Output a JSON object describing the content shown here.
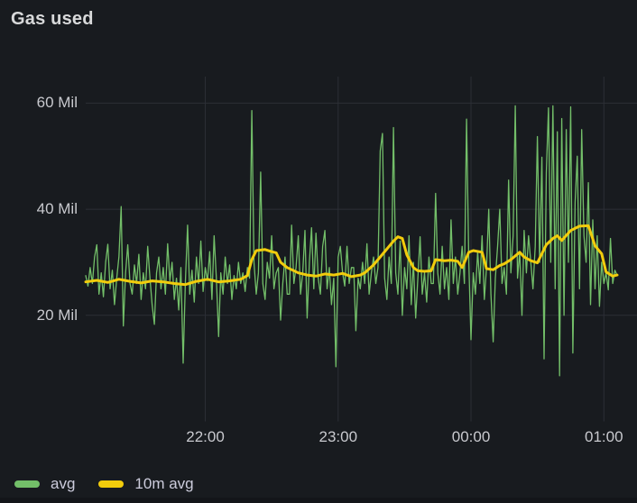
{
  "panel": {
    "title": "Gas used"
  },
  "colors": {
    "background": "#181b1f",
    "text_primary": "#d8d9da",
    "text_axis": "#c8c9ce",
    "grid": "#2c2f36",
    "green": "#73bf69",
    "yellow": "#f2cc0c",
    "bottom_strip": "#131519"
  },
  "legend": {
    "items": [
      {
        "label": "avg",
        "color": "#73bf69"
      },
      {
        "label": "10m avg",
        "color": "#f2cc0c"
      }
    ]
  },
  "chart_data": {
    "type": "line",
    "title": "Gas used",
    "xlabel": "",
    "ylabel": "Gas used",
    "unit": "Mil",
    "grid": true,
    "legend_position": "bottom",
    "ylim": [
      0,
      65
    ],
    "x_range": [
      "21:06",
      "01:06"
    ],
    "x_total_minutes": 240,
    "x_step_minutes": 1,
    "y_ticks": [
      {
        "value": 20,
        "label": "20 Mil"
      },
      {
        "value": 40,
        "label": "40 Mil"
      },
      {
        "value": 60,
        "label": "60 Mil"
      }
    ],
    "x_ticks": [
      {
        "minutes_from_start": 54,
        "label": "22:00"
      },
      {
        "minutes_from_start": 114,
        "label": "23:00"
      },
      {
        "minutes_from_start": 174,
        "label": "00:00"
      },
      {
        "minutes_from_start": 234,
        "label": "01:00"
      }
    ],
    "series": [
      {
        "name": "avg",
        "color": "#73bf69",
        "stroke_width": 1.3,
        "x_mode": "minute_index",
        "values": [
          27.5,
          25.5,
          29,
          26,
          31,
          33.3,
          24,
          28,
          23.5,
          30,
          33.4,
          25,
          28.5,
          22,
          27,
          31,
          40.5,
          18,
          28,
          33.3,
          26,
          24,
          29.5,
          26,
          31.5,
          23,
          28,
          25,
          33,
          27,
          22,
          18.3,
          28,
          31,
          25,
          29,
          24,
          33.5,
          26.5,
          30,
          23,
          27,
          21,
          29,
          11,
          26,
          37,
          24,
          28.5,
          22.5,
          31,
          26,
          34,
          24.5,
          29,
          26.5,
          32,
          23,
          35,
          27,
          16,
          28,
          24,
          31,
          26,
          29.5,
          23,
          27.5,
          25,
          30,
          26,
          28,
          24.5,
          29,
          27,
          58.6,
          30,
          24,
          28,
          47,
          26,
          23,
          30,
          27,
          35,
          25,
          28,
          29,
          19.1,
          26,
          31,
          24,
          24,
          37,
          26,
          29,
          35,
          24,
          28,
          36,
          19.5,
          30,
          36.5,
          25,
          35.5,
          27,
          24,
          33,
          36,
          25,
          29,
          22,
          27,
          10.3,
          31,
          33,
          28,
          25.5,
          33,
          26,
          29,
          29,
          17.1,
          27,
          25,
          30,
          26,
          33.5,
          24,
          28,
          31,
          26,
          29,
          51,
          54.3,
          27,
          23,
          31,
          26,
          55.4,
          28,
          24,
          34,
          20,
          29,
          25,
          35,
          22,
          30,
          19.5,
          27,
          34.8,
          24,
          28,
          22.5,
          31,
          26,
          26,
          43,
          28,
          24,
          33,
          25,
          29,
          23,
          38,
          26,
          31,
          24,
          28,
          33,
          26,
          57,
          30,
          15.4,
          28,
          24,
          32,
          26,
          35,
          23,
          29,
          40,
          24,
          15,
          27,
          33,
          40,
          26,
          29,
          24,
          45.5,
          28,
          35,
          59.5,
          27,
          32,
          20,
          36,
          28,
          35,
          30,
          25,
          33,
          53.7,
          30,
          49.8,
          11.8,
          46.9,
          59.1,
          30,
          59.5,
          25,
          54.6,
          8.6,
          57.1,
          20,
          55,
          30,
          59.3,
          12.9,
          41.3,
          50,
          25,
          55,
          35,
          30,
          45,
          22,
          38,
          25,
          35,
          21.7,
          30,
          26,
          28,
          24.8,
          34.5,
          26,
          28.5,
          27.5
        ]
      },
      {
        "name": "10m avg",
        "color": "#f2cc0c",
        "stroke_width": 3,
        "x_mode": "pairs",
        "points": [
          [
            0,
            26.3
          ],
          [
            5,
            26.6
          ],
          [
            10,
            26.2
          ],
          [
            15,
            26.8
          ],
          [
            20,
            26.4
          ],
          [
            25,
            26.1
          ],
          [
            30,
            26.5
          ],
          [
            35,
            26.3
          ],
          [
            40,
            26.0
          ],
          [
            45,
            25.8
          ],
          [
            50,
            26.4
          ],
          [
            55,
            26.8
          ],
          [
            60,
            26.3
          ],
          [
            65,
            26.5
          ],
          [
            70,
            26.8
          ],
          [
            73,
            27.5
          ],
          [
            75,
            30.5
          ],
          [
            77,
            32.2
          ],
          [
            81,
            32.4
          ],
          [
            84,
            32.0
          ],
          [
            86,
            31.8
          ],
          [
            88,
            30.0
          ],
          [
            91,
            29.0
          ],
          [
            96,
            28.0
          ],
          [
            100,
            27.6
          ],
          [
            104,
            27.4
          ],
          [
            108,
            27.8
          ],
          [
            112,
            27.6
          ],
          [
            116,
            27.9
          ],
          [
            120,
            27.3
          ],
          [
            124,
            27.6
          ],
          [
            126,
            28.0
          ],
          [
            130,
            29.5
          ],
          [
            134,
            31.5
          ],
          [
            137,
            33.0
          ],
          [
            139,
            34.0
          ],
          [
            141,
            34.8
          ],
          [
            143,
            34.5
          ],
          [
            145,
            31.4
          ],
          [
            148,
            29.0
          ],
          [
            150,
            28.4
          ],
          [
            153,
            28.3
          ],
          [
            156,
            28.4
          ],
          [
            158,
            30.5
          ],
          [
            162,
            30.3
          ],
          [
            165,
            30.4
          ],
          [
            168,
            30.2
          ],
          [
            170,
            29.0
          ],
          [
            173,
            31.9
          ],
          [
            175,
            32.2
          ],
          [
            179,
            31.9
          ],
          [
            181,
            28.8
          ],
          [
            184,
            28.6
          ],
          [
            187,
            29.4
          ],
          [
            189,
            29.7
          ],
          [
            192,
            30.5
          ],
          [
            196,
            31.9
          ],
          [
            198,
            31.0
          ],
          [
            201,
            30.3
          ],
          [
            204,
            29.9
          ],
          [
            208,
            33.3
          ],
          [
            211,
            34.5
          ],
          [
            213,
            35.0
          ],
          [
            215,
            34.1
          ],
          [
            219,
            36.0
          ],
          [
            223,
            36.8
          ],
          [
            227,
            36.9
          ],
          [
            230,
            33.1
          ],
          [
            233,
            31.6
          ],
          [
            235,
            28.2
          ],
          [
            238,
            27.4
          ],
          [
            240,
            27.6
          ]
        ]
      }
    ]
  }
}
